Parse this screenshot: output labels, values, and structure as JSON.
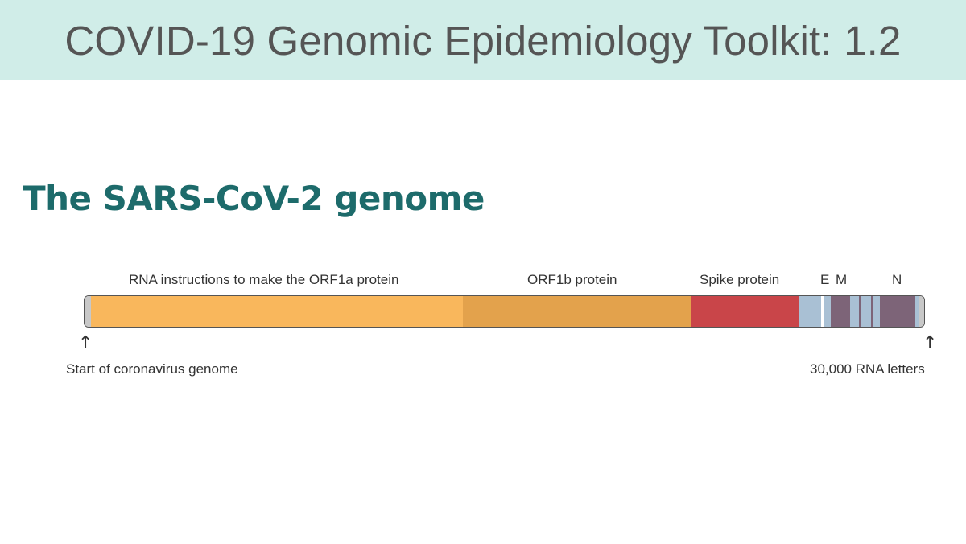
{
  "banner": {
    "title": "COVID-19 Genomic Epidemiology Toolkit: 1.2"
  },
  "slide": {
    "heading": "The SARS-CoV-2 genome"
  },
  "genome": {
    "labels": {
      "orf1a": "RNA instructions to make the ORF1a protein",
      "orf1b": "ORF1b protein",
      "spike": "Spike protein",
      "e": "E",
      "m": "M",
      "n": "N"
    },
    "start_label": "Start of coronavirus genome",
    "end_label": "30,000 RNA letters",
    "arrow_glyph": "↑",
    "colors": {
      "orf1a": "#f9b75c",
      "orf1b": "#e3a24c",
      "spike": "#c94549",
      "light_blue": "#a9c0d4",
      "purple": "#7d6478",
      "grey_end": "#c8c8c8"
    }
  }
}
